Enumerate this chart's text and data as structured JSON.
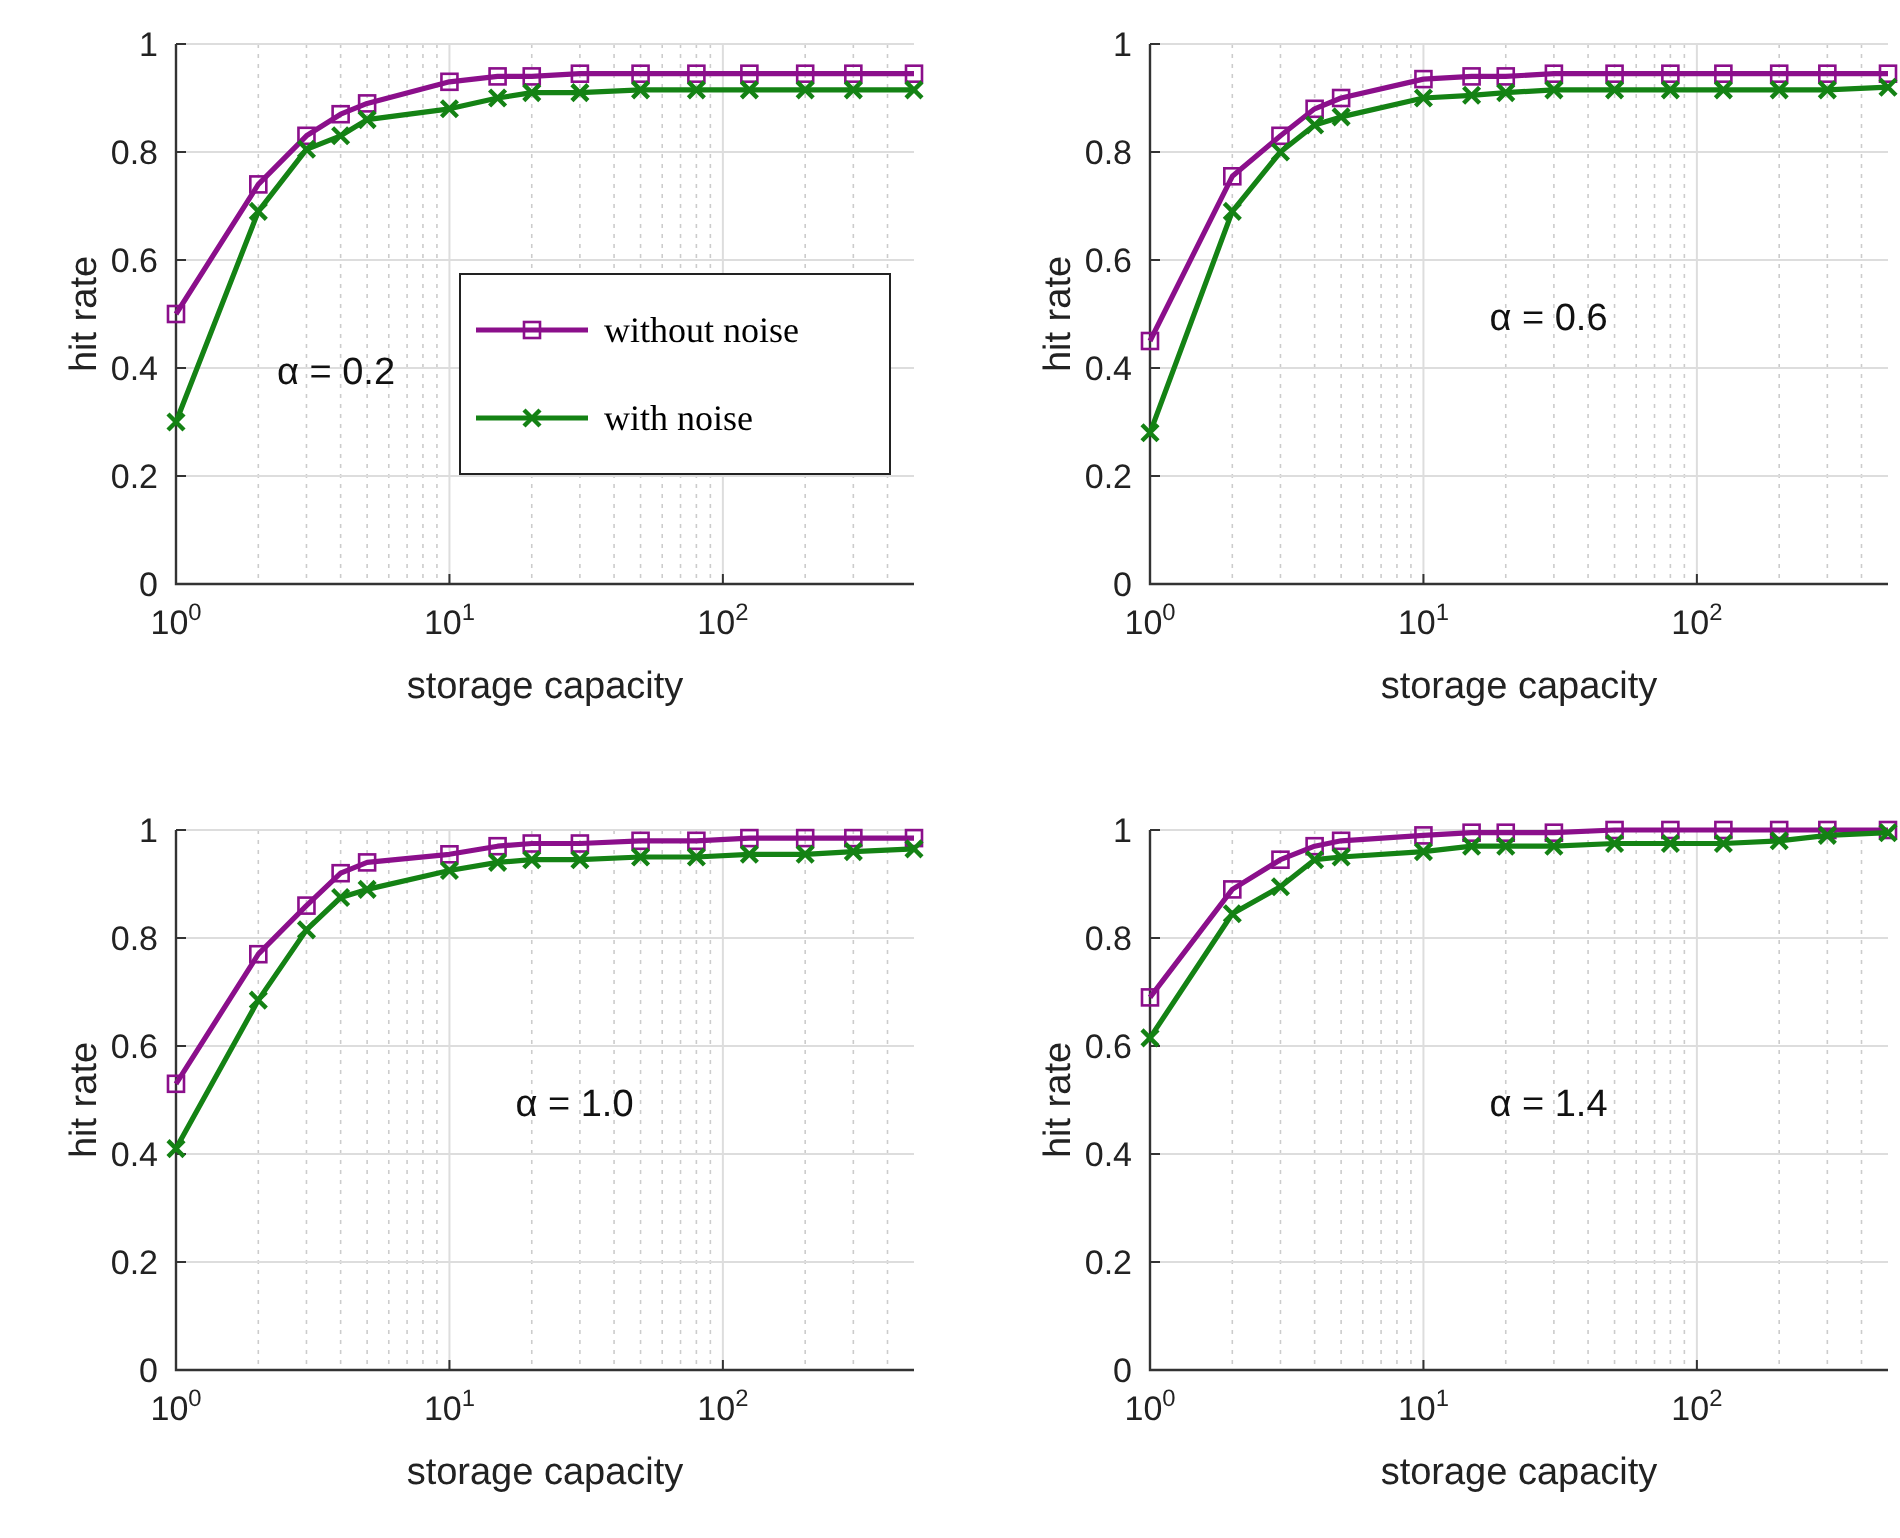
{
  "chart_data": [
    {
      "type": "line",
      "xlabel": "storage capacity",
      "ylabel": "hit rate",
      "log": "x",
      "grid": true,
      "legend": "right",
      "marker": "square",
      "line_style": "solid",
      "xlim": [
        1,
        500
      ],
      "ylim": [
        0,
        1
      ],
      "xticks": [
        {
          "value": 1,
          "label": "10$^{0}$"
        },
        {
          "value": 10,
          "label": "10$^{1}$"
        },
        {
          "value": 100,
          "label": "10$^{2}$"
        }
      ],
      "yticks": [
        0,
        0.2,
        0.4,
        0.6,
        0.8,
        1
      ],
      "annotations": [
        "α = 0.2"
      ],
      "x": [
        1,
        2,
        3,
        4,
        5,
        10,
        15,
        20,
        30,
        50,
        80,
        125,
        200,
        300,
        500
      ],
      "series": [
        {
          "name": "without noise",
          "color": "#8b0f8b",
          "marker": "square",
          "values": [
            0.5,
            0.74,
            0.83,
            0.87,
            0.89,
            0.93,
            0.94,
            0.94,
            0.945,
            0.945,
            0.945,
            0.945,
            0.945,
            0.945,
            0.945
          ]
        },
        {
          "name": "with noise",
          "color": "#148214",
          "marker": "cross",
          "values": [
            0.3,
            0.69,
            0.805,
            0.83,
            0.86,
            0.88,
            0.9,
            0.91,
            0.91,
            0.915,
            0.915,
            0.915,
            0.915,
            0.915,
            0.915
          ]
        }
      ]
    },
    {
      "type": "line",
      "xlabel": "storage capacity",
      "ylabel": "hit rate",
      "log": "x",
      "grid": true,
      "marker": "square",
      "line_style": "solid",
      "xlim": [
        1,
        500
      ],
      "ylim": [
        0,
        1
      ],
      "xticks": [
        {
          "value": 1,
          "label": "10$^{0}$"
        },
        {
          "value": 10,
          "label": "10$^{1}$"
        },
        {
          "value": 100,
          "label": "10$^{2}$"
        }
      ],
      "yticks": [
        0,
        0.2,
        0.4,
        0.6,
        0.8,
        1
      ],
      "annotations": [
        "α = 0.6"
      ],
      "x": [
        1,
        2,
        3,
        4,
        5,
        10,
        15,
        20,
        30,
        50,
        80,
        125,
        200,
        300,
        500
      ],
      "series": [
        {
          "color": "#8b0f8b",
          "marker": "square",
          "values": [
            0.45,
            0.755,
            0.83,
            0.88,
            0.9,
            0.935,
            0.94,
            0.94,
            0.945,
            0.945,
            0.945,
            0.945,
            0.945,
            0.945,
            0.945
          ]
        },
        {
          "color": "#148214",
          "marker": "cross",
          "values": [
            0.28,
            0.69,
            0.8,
            0.85,
            0.865,
            0.9,
            0.905,
            0.91,
            0.915,
            0.915,
            0.915,
            0.915,
            0.915,
            0.915,
            0.92
          ]
        }
      ]
    },
    {
      "type": "line",
      "xlabel": "storage capacity",
      "ylabel": "hit rate",
      "log": "x",
      "grid": true,
      "marker": "square",
      "line_style": "solid",
      "xlim": [
        1,
        500
      ],
      "ylim": [
        0,
        1
      ],
      "xticks": [
        {
          "value": 1,
          "label": "10$^{0}$"
        },
        {
          "value": 10,
          "label": "10$^{1}$"
        },
        {
          "value": 100,
          "label": "10$^{2}$"
        }
      ],
      "yticks": [
        0,
        0.2,
        0.4,
        0.6,
        0.8,
        1
      ],
      "annotations": [
        "α = 1.0"
      ],
      "x": [
        1,
        2,
        3,
        4,
        5,
        10,
        15,
        20,
        30,
        50,
        80,
        125,
        200,
        300,
        500
      ],
      "series": [
        {
          "color": "#8b0f8b",
          "marker": "square",
          "values": [
            0.53,
            0.77,
            0.86,
            0.92,
            0.94,
            0.955,
            0.97,
            0.975,
            0.975,
            0.98,
            0.98,
            0.985,
            0.985,
            0.985,
            0.985
          ]
        },
        {
          "color": "#148214",
          "marker": "cross",
          "values": [
            0.41,
            0.685,
            0.815,
            0.875,
            0.89,
            0.925,
            0.94,
            0.945,
            0.945,
            0.95,
            0.95,
            0.955,
            0.955,
            0.96,
            0.965
          ]
        }
      ]
    },
    {
      "type": "line",
      "xlabel": "storage capacity",
      "ylabel": "hit rate",
      "log": "x",
      "grid": true,
      "marker": "square",
      "line_style": "solid",
      "xlim": [
        1,
        500
      ],
      "ylim": [
        0,
        1
      ],
      "xticks": [
        {
          "value": 1,
          "label": "10$^{0}$"
        },
        {
          "value": 10,
          "label": "10$^{1}$"
        },
        {
          "value": 100,
          "label": "10$^{2}$"
        }
      ],
      "yticks": [
        0,
        0.2,
        0.4,
        0.6,
        0.8,
        1
      ],
      "annotations": [
        "α = 1.4"
      ],
      "x": [
        1,
        2,
        3,
        4,
        5,
        10,
        15,
        20,
        30,
        50,
        80,
        125,
        200,
        300,
        500
      ],
      "series": [
        {
          "color": "#8b0f8b",
          "marker": "square",
          "values": [
            0.69,
            0.89,
            0.945,
            0.97,
            0.98,
            0.99,
            0.995,
            0.995,
            0.995,
            1.0,
            1.0,
            1.0,
            1.0,
            1.0,
            1.0
          ]
        },
        {
          "color": "#148214",
          "marker": "cross",
          "values": [
            0.615,
            0.845,
            0.895,
            0.945,
            0.95,
            0.96,
            0.97,
            0.97,
            0.97,
            0.975,
            0.975,
            0.975,
            0.98,
            0.99,
            0.995
          ]
        }
      ]
    }
  ]
}
